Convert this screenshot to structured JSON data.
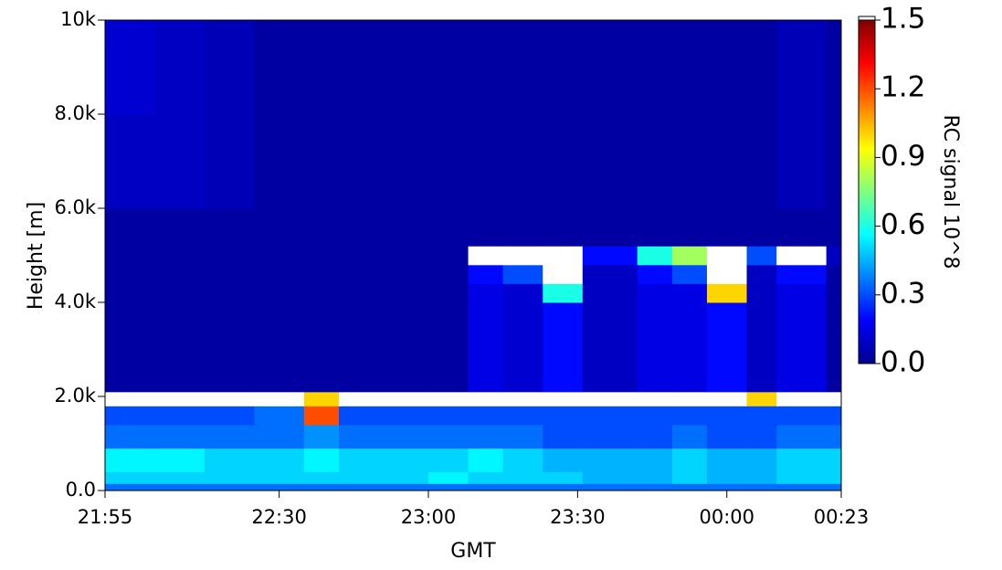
{
  "chart_data": {
    "type": "heatmap",
    "x_label": "GMT",
    "y_label": "Height [m]",
    "colorbar_label": "RC signal 10^8",
    "colormap": "jet",
    "over_color": "#ffffff",
    "xlim": [
      0,
      148
    ],
    "xticks": [
      {
        "value": 0,
        "label": "21:55"
      },
      {
        "value": 35,
        "label": "22:30"
      },
      {
        "value": 65,
        "label": "23:00"
      },
      {
        "value": 95,
        "label": "23:30"
      },
      {
        "value": 125,
        "label": "00:00"
      },
      {
        "value": 148,
        "label": "00:23"
      }
    ],
    "ylim": [
      0,
      10000
    ],
    "yticks": [
      {
        "value": 0,
        "label": "0.0"
      },
      {
        "value": 2000,
        "label": "2.0k"
      },
      {
        "value": 4000,
        "label": "4.0k"
      },
      {
        "value": 6000,
        "label": "6.0k"
      },
      {
        "value": 8000,
        "label": "8.0k"
      },
      {
        "value": 10000,
        "label": "10k"
      }
    ],
    "zlim": [
      0,
      1.5
    ],
    "zticks": [
      {
        "value": 0,
        "label": "0.0"
      },
      0.3,
      0.6,
      0.9,
      1.2,
      1.5
    ],
    "x_bins": [
      0,
      10,
      20,
      30,
      40,
      47,
      55,
      65,
      73,
      80,
      88,
      96,
      107,
      114,
      121,
      129,
      135,
      145,
      148
    ],
    "y_bins": [
      0,
      150,
      400,
      900,
      1400,
      1800,
      2100,
      3000,
      4000,
      4400,
      4800,
      5200,
      6000,
      8000,
      10000
    ],
    "z": [
      [
        0.35,
        0.35,
        0.35,
        0.35,
        0.35,
        0.35,
        0.35,
        0.35,
        0.35,
        0.35,
        0.35,
        0.35,
        0.35,
        0.35,
        0.35,
        0.35,
        0.35,
        0.35
      ],
      [
        0.5,
        0.5,
        0.5,
        0.5,
        0.5,
        0.5,
        0.5,
        0.55,
        0.5,
        0.5,
        0.5,
        0.45,
        0.45,
        0.5,
        0.45,
        0.45,
        0.5,
        0.5
      ],
      [
        0.55,
        0.55,
        0.5,
        0.5,
        0.55,
        0.5,
        0.5,
        0.5,
        0.55,
        0.5,
        0.45,
        0.45,
        0.45,
        0.5,
        0.45,
        0.45,
        0.5,
        0.5
      ],
      [
        0.35,
        0.35,
        0.35,
        0.35,
        0.4,
        0.35,
        0.35,
        0.35,
        0.35,
        0.35,
        0.3,
        0.3,
        0.3,
        0.35,
        0.3,
        0.3,
        0.35,
        0.35
      ],
      [
        0.3,
        0.3,
        0.3,
        0.35,
        1.2,
        0.3,
        0.3,
        0.3,
        0.3,
        0.3,
        0.3,
        0.3,
        0.3,
        0.3,
        0.3,
        0.3,
        0.3,
        0.3
      ],
      [
        1.6,
        1.6,
        1.6,
        1.6,
        1.0,
        1.6,
        1.6,
        1.6,
        1.6,
        1.6,
        1.6,
        1.6,
        1.6,
        1.6,
        1.6,
        1.0,
        1.6,
        1.6
      ],
      [
        0.05,
        0.05,
        0.05,
        0.05,
        0.05,
        0.05,
        0.05,
        0.05,
        0.15,
        0.12,
        0.2,
        0.1,
        0.15,
        0.15,
        0.2,
        0.1,
        0.15,
        0.05
      ],
      [
        0.05,
        0.05,
        0.05,
        0.05,
        0.05,
        0.05,
        0.05,
        0.05,
        0.15,
        0.12,
        0.2,
        0.1,
        0.15,
        0.15,
        0.2,
        0.1,
        0.15,
        0.05
      ],
      [
        0.05,
        0.05,
        0.05,
        0.05,
        0.05,
        0.05,
        0.05,
        0.05,
        0.15,
        0.12,
        0.6,
        0.1,
        0.15,
        0.15,
        1.0,
        0.1,
        0.15,
        0.05
      ],
      [
        0.05,
        0.05,
        0.05,
        0.05,
        0.05,
        0.05,
        0.05,
        0.05,
        0.2,
        0.3,
        1.6,
        0.1,
        0.2,
        0.3,
        1.6,
        0.1,
        0.2,
        0.05
      ],
      [
        0.05,
        0.05,
        0.05,
        0.05,
        0.05,
        0.05,
        0.05,
        0.05,
        1.6,
        1.6,
        1.6,
        0.2,
        0.6,
        0.8,
        1.6,
        0.3,
        1.6,
        0.1
      ],
      [
        0.05,
        0.05,
        0.05,
        0.05,
        0.05,
        0.05,
        0.05,
        0.05,
        0.05,
        0.05,
        0.05,
        0.05,
        0.05,
        0.05,
        0.05,
        0.05,
        0.05,
        0.05
      ],
      [
        0.1,
        0.1,
        0.08,
        0.05,
        0.05,
        0.05,
        0.05,
        0.05,
        0.05,
        0.05,
        0.05,
        0.05,
        0.05,
        0.05,
        0.05,
        0.05,
        0.08,
        0.05
      ],
      [
        0.12,
        0.1,
        0.08,
        0.05,
        0.05,
        0.05,
        0.05,
        0.05,
        0.05,
        0.05,
        0.05,
        0.05,
        0.05,
        0.05,
        0.05,
        0.05,
        0.08,
        0.05
      ]
    ]
  }
}
